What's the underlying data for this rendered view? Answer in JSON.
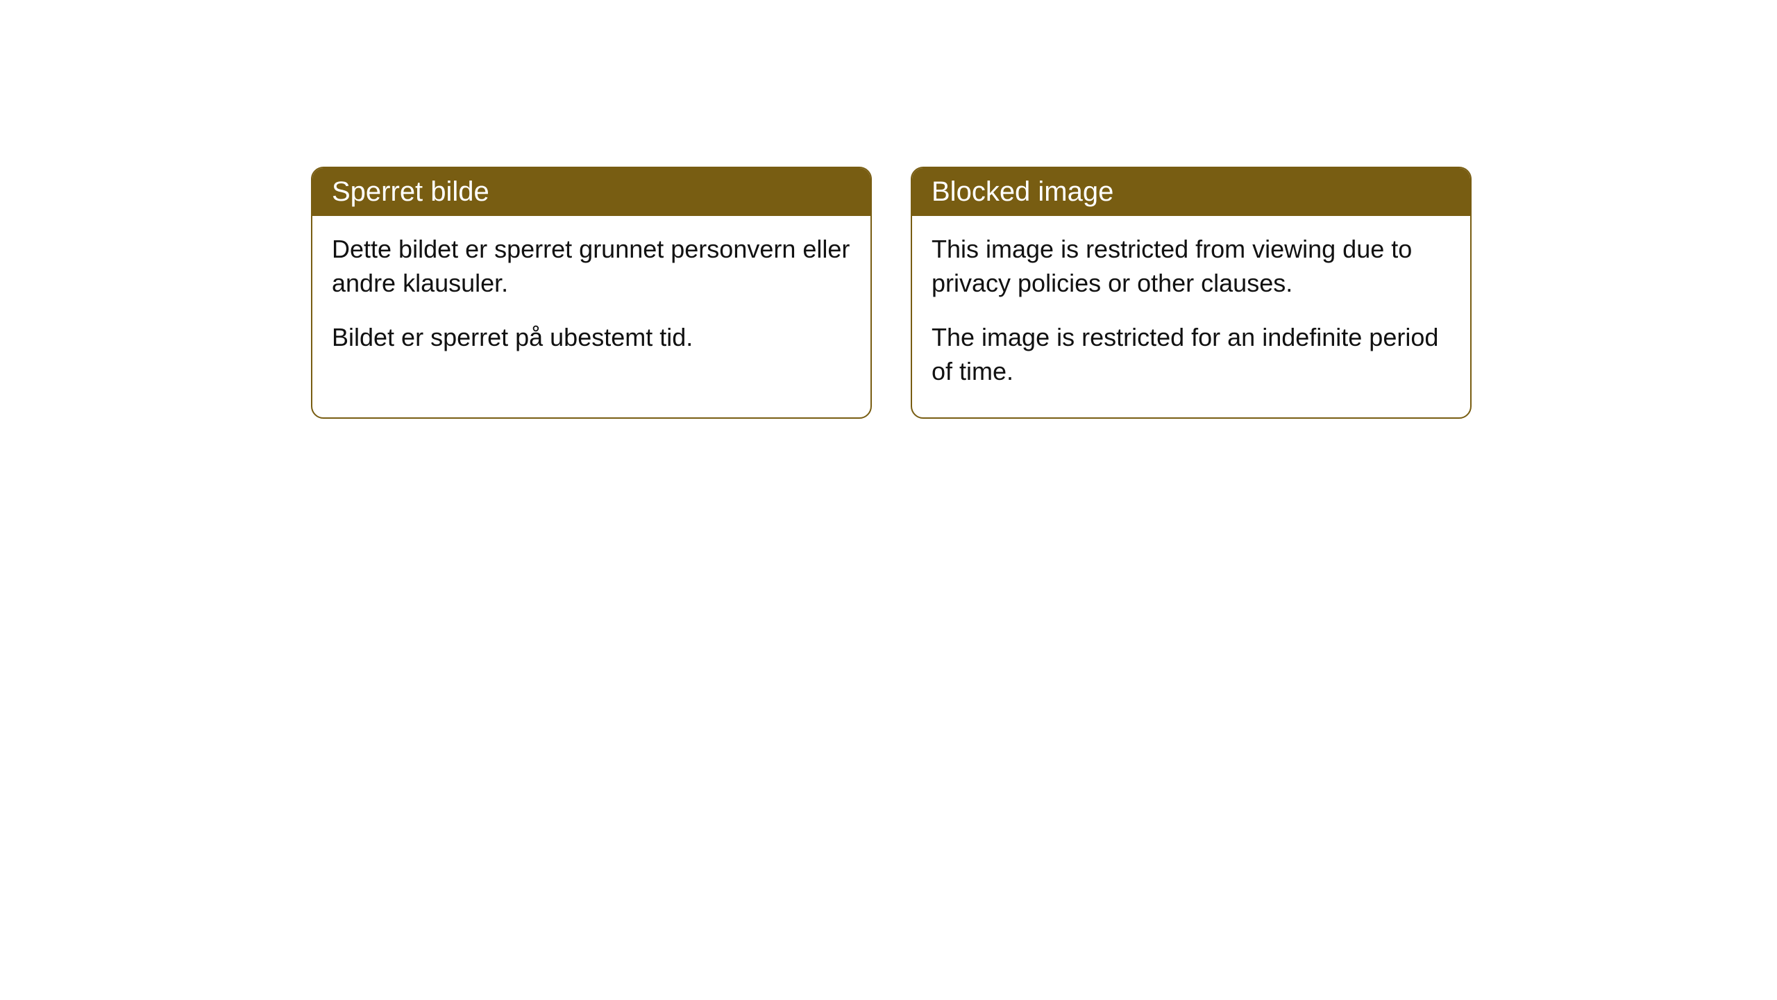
{
  "cards": [
    {
      "title": "Sperret bilde",
      "paragraph1": "Dette bildet er sperret grunnet personvern eller andre klausuler.",
      "paragraph2": "Bildet er sperret på ubestemt tid."
    },
    {
      "title": "Blocked image",
      "paragraph1": "This image is restricted from viewing due to privacy policies or other clauses.",
      "paragraph2": "The image is restricted for an indefinite period of time."
    }
  ],
  "styling": {
    "header_background": "#785d12",
    "header_text_color": "#ffffff",
    "border_color": "#785d12",
    "body_background": "#ffffff",
    "body_text_color": "#111111",
    "border_radius": 18,
    "header_fontsize": 40,
    "body_fontsize": 36
  }
}
